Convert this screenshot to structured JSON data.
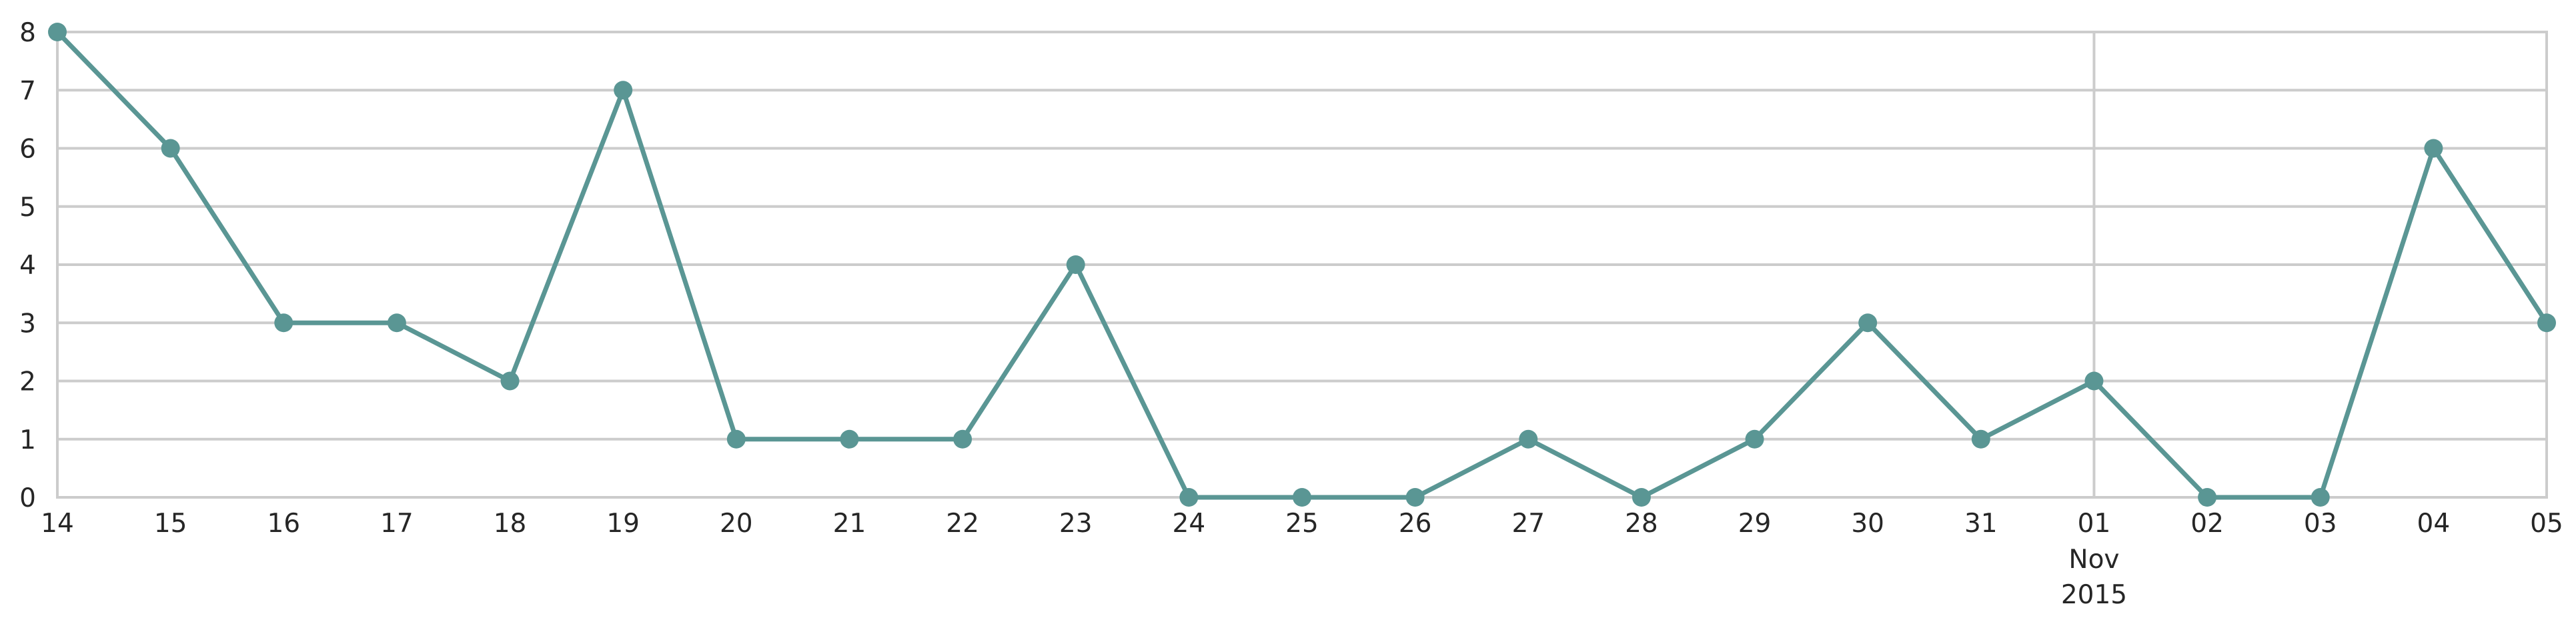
{
  "chart_data": {
    "type": "line",
    "title": "",
    "xlabel": "",
    "ylabel": "",
    "x": [
      "2015-10-14",
      "2015-10-15",
      "2015-10-16",
      "2015-10-17",
      "2015-10-18",
      "2015-10-19",
      "2015-10-20",
      "2015-10-21",
      "2015-10-22",
      "2015-10-23",
      "2015-10-24",
      "2015-10-25",
      "2015-10-26",
      "2015-10-27",
      "2015-10-28",
      "2015-10-29",
      "2015-10-30",
      "2015-10-31",
      "2015-11-01",
      "2015-11-02",
      "2015-11-03",
      "2015-11-04",
      "2015-11-05"
    ],
    "tick_labels": [
      "14",
      "15",
      "16",
      "17",
      "18",
      "19",
      "20",
      "21",
      "22",
      "23",
      "24",
      "25",
      "26",
      "27",
      "28",
      "29",
      "30",
      "31",
      "01",
      "02",
      "03",
      "04",
      "05"
    ],
    "month_label": {
      "tick": "01",
      "month": "Nov",
      "year": "2015"
    },
    "series": [
      {
        "values": [
          8,
          6,
          3,
          3,
          2,
          7,
          1,
          1,
          1,
          4,
          0,
          0,
          0,
          1,
          0,
          1,
          3,
          1,
          2,
          0,
          0,
          6,
          3
        ]
      }
    ],
    "ylim": [
      0,
      8
    ],
    "yticks": [
      0,
      1,
      2,
      3,
      4,
      5,
      6,
      7,
      8
    ],
    "grid": true,
    "vertical_gridline_at": "2015-11-01",
    "colors": {
      "line": "#5a9694",
      "grid": "#cccccc",
      "text": "#262626"
    }
  }
}
